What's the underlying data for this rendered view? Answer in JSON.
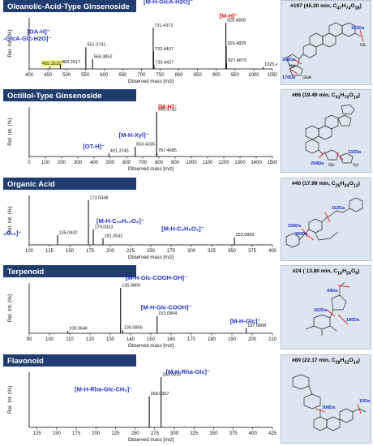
{
  "colors": {
    "panel_title_bg": "#1f3d6e",
    "panel_title_text": "#ffffff",
    "ion_blue": "#1f33c8",
    "ion_red": "#e21b1b",
    "peak_label": "#111111",
    "highlight": "#f6ee7b",
    "structure_panel_bg": "#dde6f0",
    "annotation_red": "#e21b1b",
    "annotation_blue": "#1f33c8"
  },
  "chart_data": [
    {
      "type": "bar",
      "title": "Oleanolic-Acid-Type Ginsenoside",
      "xlabel": "Observed mass [m/z]",
      "ylabel": "Rel. Int. (%)",
      "xlim": [
        400,
        1050
      ],
      "xticks": [
        "400",
        "450",
        "500",
        "550",
        "600",
        "650",
        "700",
        "750",
        "800",
        "850",
        "900",
        "950",
        "1000",
        "1050"
      ],
      "peaks": [
        {
          "x": 455.3515,
          "y": 6,
          "label": "455.3515",
          "highlight": true
        },
        {
          "x": 483.3517,
          "y": 10,
          "label": "483.3517"
        },
        {
          "x": 551.3741,
          "y": 47,
          "label": "551.3741"
        },
        {
          "x": 569.3852,
          "y": 21,
          "label": "569.3852"
        },
        {
          "x": 731.4372,
          "y": 89,
          "label": "731.4372"
        },
        {
          "x": 732.4407,
          "y": 38,
          "label": "732.4407"
        },
        {
          "x": 733.4427,
          "y": 9,
          "label": "733.4427"
        },
        {
          "x": 925.4808,
          "y": 100,
          "label": "925.4808"
        },
        {
          "x": 926.4835,
          "y": 50,
          "label": "926.4835"
        },
        {
          "x": 927.4879,
          "y": 13,
          "label": "927.4879"
        },
        {
          "x": 1025.4042,
          "y": 4,
          "label": "1025.4042"
        }
      ],
      "ion_labels": [
        {
          "text": "[M-H-GlcA-H2O]⁻",
          "at": 731.4372,
          "color": "blue"
        },
        {
          "text": "[M-H-GlcA-Glc-H2O]⁻",
          "at": 551.3741,
          "color": "blue"
        },
        {
          "text": "[OA-H]⁻",
          "at": 455.3515,
          "color": "blue"
        },
        {
          "text": "[M-H]⁻",
          "at": 925.4808,
          "color": "red"
        }
      ]
    },
    {
      "type": "bar",
      "title": "Octillol-Type Ginsenoside",
      "xlabel": "Observed mass [m/z]",
      "ylabel": "Rel. Int. (%)",
      "xlim": [
        0,
        1500
      ],
      "xticks": [
        "0",
        "100",
        "200",
        "300",
        "400",
        "500",
        "600",
        "700",
        "800",
        "900",
        "1000",
        "1100",
        "1200",
        "1300",
        "1400",
        "1500"
      ],
      "peaks": [
        {
          "x": 491.3745,
          "y": 7,
          "label": "491.3745"
        },
        {
          "x": 653.4335,
          "y": 22,
          "label": "653.4335"
        },
        {
          "x": 785.471,
          "y": 100,
          "label": "785.4710"
        },
        {
          "x": 787.4685,
          "y": 8,
          "label": "787.4685"
        }
      ],
      "ion_labels": [
        {
          "text": "[M-H]⁻",
          "at": 785.471,
          "color": "red"
        },
        {
          "text": "[M-H-Xyl]⁻",
          "at": 653.4335,
          "color": "blue"
        },
        {
          "text": "[OT-H]⁻",
          "at": 491.3745,
          "color": "blue"
        }
      ]
    },
    {
      "type": "bar",
      "title": "Organic Acid",
      "xlabel": "Observed mass [m/z]",
      "ylabel": "Rel. Int. (%)",
      "xlim": [
        100,
        400
      ],
      "xticks": [
        "100",
        "125",
        "150",
        "175",
        "200",
        "225",
        "250",
        "275",
        "300",
        "325",
        "350",
        "375",
        "400"
      ],
      "peaks": [
        {
          "x": 135.0432,
          "y": 22,
          "label": "135.0432"
        },
        {
          "x": 173.0448,
          "y": 100,
          "label": "173.0448"
        },
        {
          "x": 179.0323,
          "y": 35,
          "label": "179.0323"
        },
        {
          "x": 191.0542,
          "y": 15,
          "label": "191.0542"
        },
        {
          "x": 353.0865,
          "y": 17,
          "label": "353.0865"
        }
      ],
      "ion_labels": [
        {
          "text": "[M-H-C₁₆H₁₀O₈]⁻",
          "at": 179.0323,
          "color": "blue"
        },
        {
          "text": "[M-H-C₁₇H₁₂O₁₀]⁻",
          "at": 135.0432,
          "color": "blue"
        },
        {
          "text": "[M-H-C₉H₆O₃]⁻",
          "at": 353.0865,
          "color": "blue"
        }
      ]
    },
    {
      "type": "bar",
      "title": "Terpenoid",
      "xlabel": "Observed mass [m/z]",
      "ylabel": "Rel. Int. (%)",
      "xlim": [
        90,
        210
      ],
      "xticks": [
        "90",
        "100",
        "110",
        "120",
        "130",
        "140",
        "150",
        "160",
        "170",
        "180",
        "190",
        "200",
        "210"
      ],
      "peaks": [
        {
          "x": 109.0646,
          "y": 5,
          "label": "109.0646"
        },
        {
          "x": 135.0806,
          "y": 100,
          "label": "135.0806"
        },
        {
          "x": 136.0856,
          "y": 7,
          "label": "136.0856"
        },
        {
          "x": 153.0904,
          "y": 38,
          "label": "153.0904"
        },
        {
          "x": 197.0808,
          "y": 12,
          "label": "197.0808"
        }
      ],
      "ion_labels": [
        {
          "text": "[M-H-Glc-COOH-OH]⁻",
          "at": 135.0806,
          "color": "blue"
        },
        {
          "text": "[M-H-Glc-COOH]⁻",
          "at": 153.0904,
          "color": "blue"
        },
        {
          "text": "[M-H-Glc]⁻",
          "at": 197.0808,
          "color": "blue"
        }
      ]
    },
    {
      "type": "bar",
      "title": "Flavonoid",
      "xlabel": "Observed mass [m/z]",
      "ylabel": "Rel. Int. (%)",
      "xlim": [
        115,
        425
      ],
      "xticks": [
        "125",
        "150",
        "175",
        "200",
        "225",
        "250",
        "275",
        "300",
        "325",
        "350",
        "375",
        "400",
        "425"
      ],
      "peaks": [
        {
          "x": 268.0357,
          "y": 62,
          "label": "268.0357"
        },
        {
          "x": 283.0614,
          "y": 100,
          "label": "283.0614"
        }
      ],
      "ion_labels": [
        {
          "text": "[M-H-Rha-Glc]⁻",
          "at": 283.0614,
          "color": "blue"
        },
        {
          "text": "[M-H-Rha-Glc-CH₃]⁻",
          "at": 268.0357,
          "color": "blue"
        }
      ]
    }
  ],
  "structures": [
    {
      "title_prefix": "#197 (45.20 min, C",
      "formula_c": "47",
      "mid": "H",
      "formula_h": "74",
      "o": "O",
      "formula_o": "18",
      "suffix": ")",
      "labels": [
        "162Da",
        "Glc",
        "308Da",
        "Xyl",
        "176Da",
        "GluA"
      ]
    },
    {
      "title_prefix": "#66 (19.49 min, C",
      "formula_c": "41",
      "mid": "H",
      "formula_h": "70",
      "o": "O",
      "formula_o": "14",
      "suffix": ")",
      "labels": [
        "132Da",
        "Xyl",
        "Glc",
        "294Da"
      ]
    },
    {
      "title_prefix": "#40 (17.99 min, C",
      "formula_c": "25",
      "mid": "H",
      "formula_h": "24",
      "o": "O",
      "formula_o": "12",
      "suffix": ")",
      "labels": [
        "162Da",
        "336Da",
        "380Da"
      ]
    },
    {
      "title_prefix": "#24 ( 13.80 min, C",
      "formula_c": "16",
      "mid": "H",
      "formula_h": "24",
      "o": "O",
      "formula_o": "9",
      "suffix": ")",
      "labels": [
        "44Da",
        "180Da",
        "162Da"
      ]
    },
    {
      "title_prefix": "#80 (22.17 min, C",
      "formula_c": "28",
      "mid": "H",
      "formula_h": "32",
      "o": "O",
      "formula_o": "14",
      "suffix": ")",
      "labels": [
        "15Da",
        "308Da"
      ]
    }
  ]
}
